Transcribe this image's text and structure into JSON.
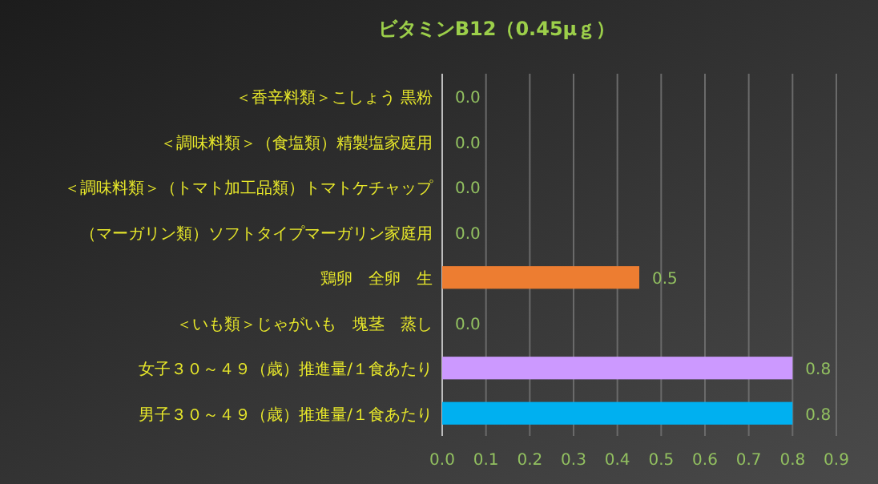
{
  "chart_data": {
    "type": "bar",
    "orientation": "horizontal",
    "title": "ビタミンB12（0.45μｇ）",
    "categories": [
      "＜香辛料類＞こしょう 黒粉",
      "＜調味料類＞（食塩類）精製塩家庭用",
      "＜調味料類＞（トマト加工品類）トマトケチャップ",
      "（マーガリン類）ソフトタイプマーガリン家庭用",
      "鶏卵　全卵　生",
      "＜いも類＞じゃがいも　塊茎　蒸し",
      "女子３０～４９（歳）推進量/１食あたり",
      "男子３０～４９（歳）推進量/１食あたり"
    ],
    "values": [
      0,
      0,
      0,
      0,
      0.45,
      0,
      0.8,
      0.8
    ],
    "value_labels": [
      "0.0",
      "0.0",
      "0.0",
      "0.0",
      "0.5",
      "0.0",
      "0.8",
      "0.8"
    ],
    "colors": [
      "#ed7d31",
      "#ed7d31",
      "#ed7d31",
      "#ed7d31",
      "#ed7d31",
      "#ed7d31",
      "#cc99ff",
      "#00b0f0"
    ],
    "xlim": [
      0,
      0.9
    ],
    "xticks": [
      {
        "value": 0,
        "label": "0.0"
      },
      {
        "value": 0.1,
        "label": "0.1"
      },
      {
        "value": 0.2,
        "label": "0.2"
      },
      {
        "value": 0.3,
        "label": "0.3"
      },
      {
        "value": 0.4,
        "label": "0.4"
      },
      {
        "value": 0.5,
        "label": "0.5"
      },
      {
        "value": 0.6,
        "label": "0.6"
      },
      {
        "value": 0.7,
        "label": "0.7"
      },
      {
        "value": 0.8,
        "label": "0.8"
      },
      {
        "value": 0.9,
        "label": "0.9"
      }
    ],
    "grid": "x"
  }
}
